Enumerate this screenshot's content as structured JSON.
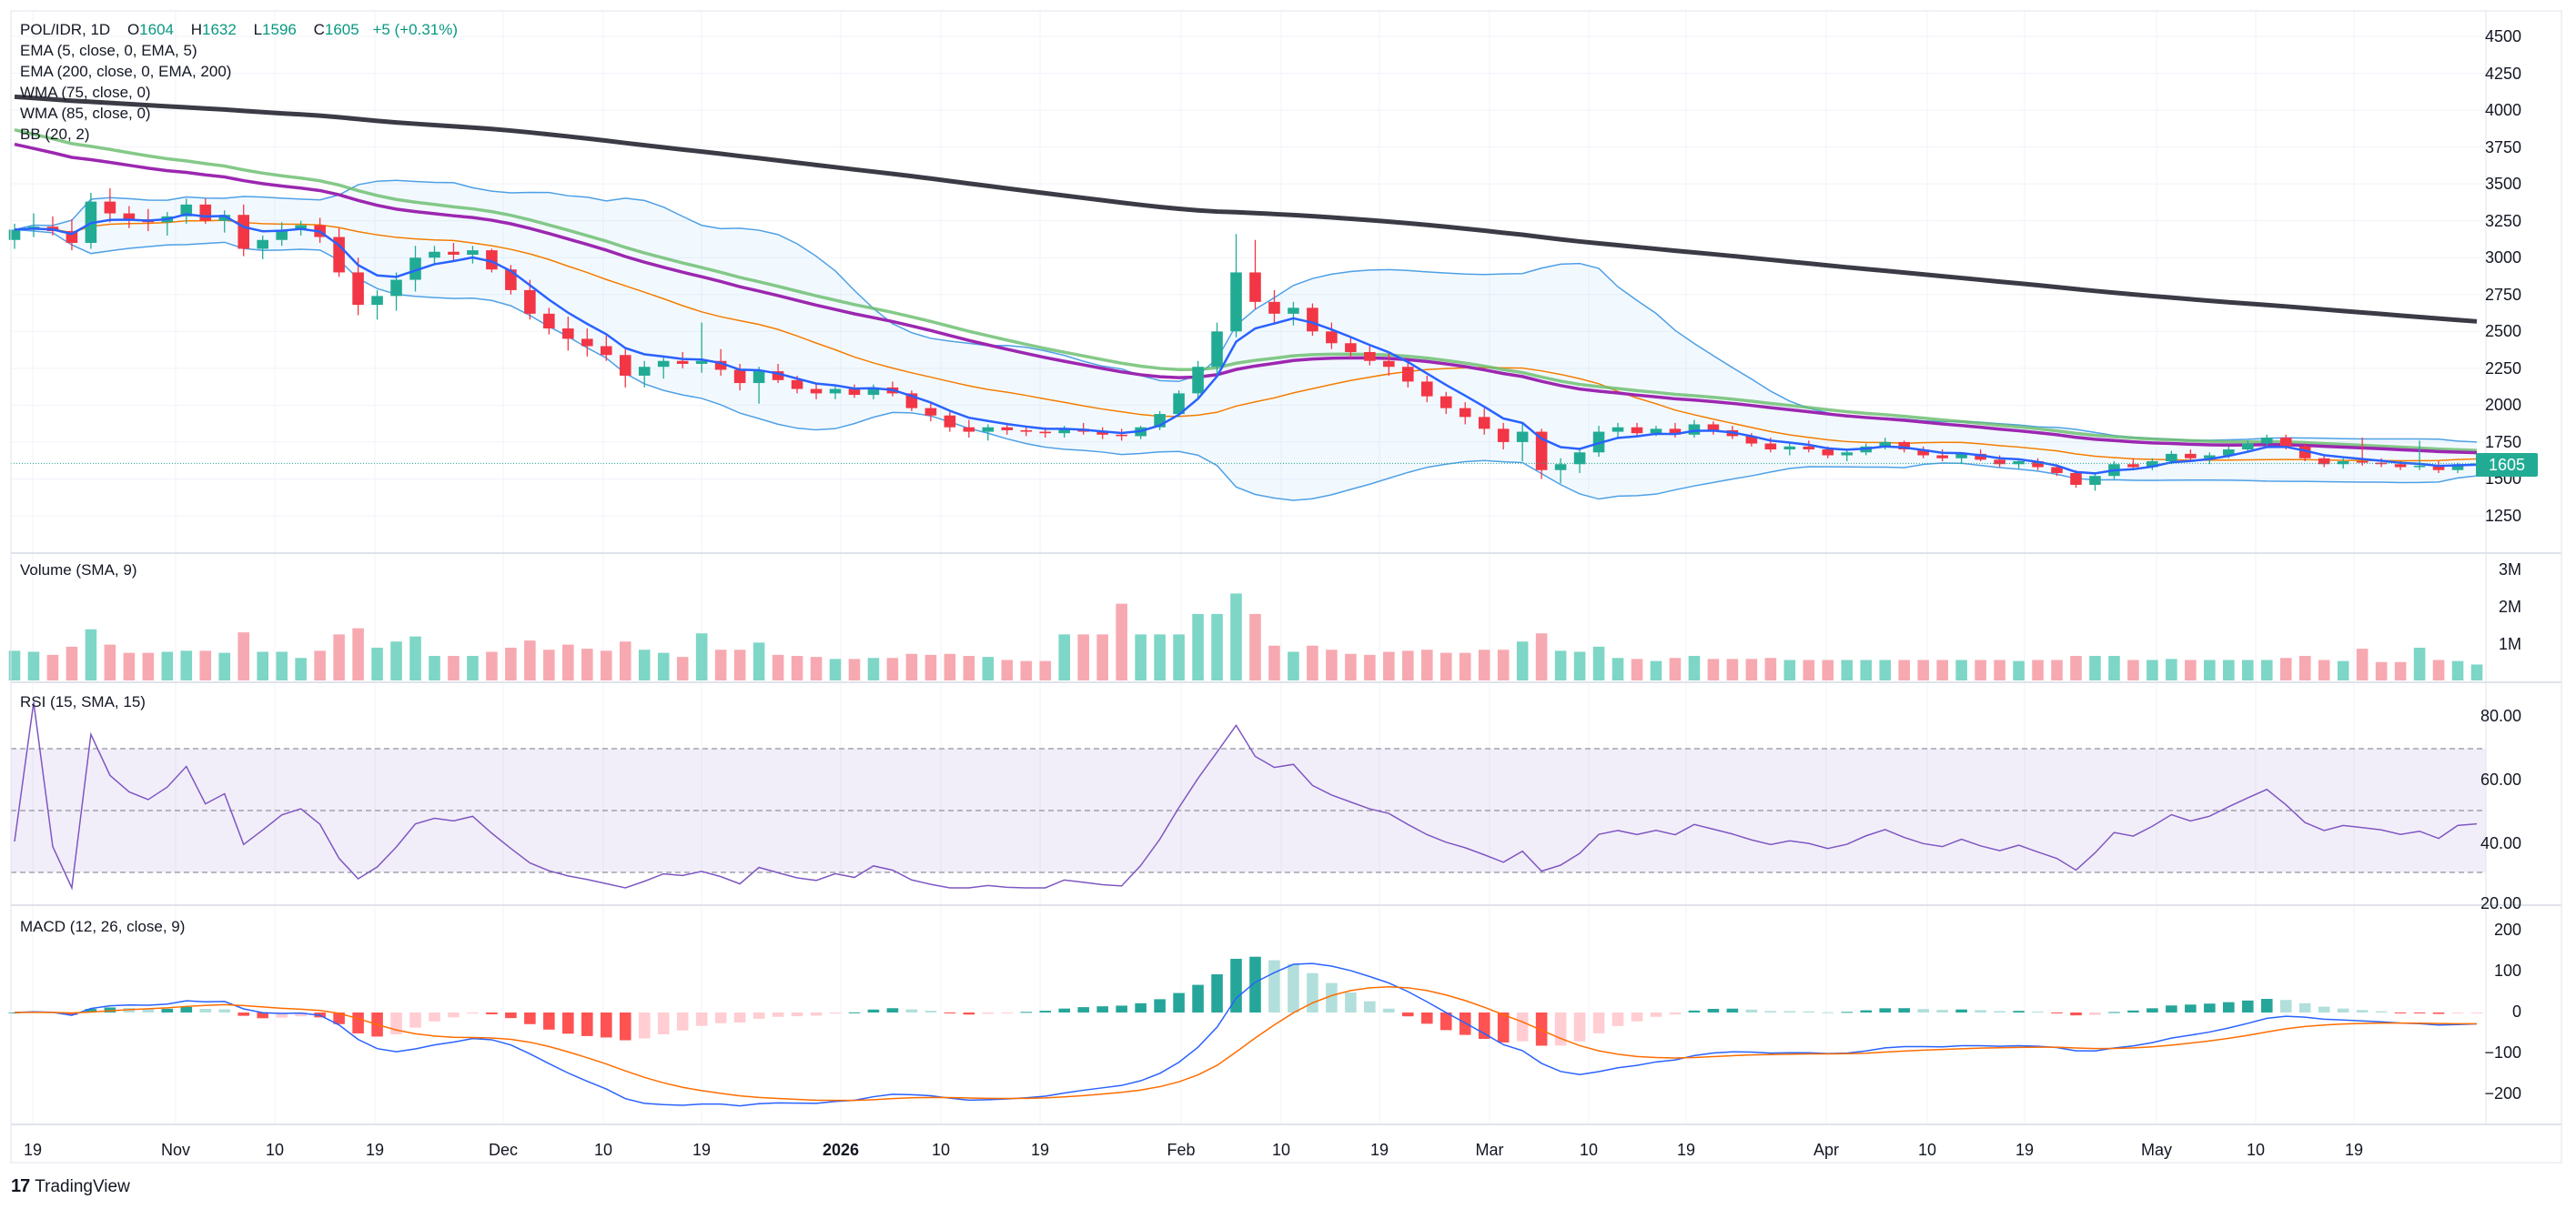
{
  "header": {
    "symbol": "POL/IDR, 1D",
    "open_label": "O",
    "open": "1604",
    "high_label": "H",
    "high": "1632",
    "low_label": "L",
    "low": "1596",
    "close_label": "C",
    "close": "1605",
    "change": "+5 (+0.31%)"
  },
  "indicators": [
    "EMA (5, close, 0, EMA, 5)",
    "EMA (200, close, 0, EMA, 200)",
    "WMA (75, close, 0)",
    "WMA (85, close, 0)",
    "BB (20, 2)"
  ],
  "panes": {
    "volume_title": "Volume (SMA, 9)",
    "rsi_title": "RSI (15, SMA, 15)",
    "macd_title": "MACD (12, 26, close, 9)"
  },
  "price_axis": [
    "4500",
    "4250",
    "4000",
    "3750",
    "3500",
    "3250",
    "3000",
    "2750",
    "2500",
    "2250",
    "2000",
    "1750",
    "1500",
    "1250"
  ],
  "volume_axis": [
    "3M",
    "2M",
    "1M"
  ],
  "rsi_axis": [
    "80.00",
    "60.00",
    "40.00",
    "20.00"
  ],
  "macd_axis": [
    "200",
    "100",
    "0",
    "−100",
    "−200"
  ],
  "time_axis": [
    {
      "label": "19",
      "bold": false
    },
    {
      "label": "Nov",
      "bold": false
    },
    {
      "label": "10",
      "bold": false
    },
    {
      "label": "19",
      "bold": false
    },
    {
      "label": "Dec",
      "bold": false
    },
    {
      "label": "10",
      "bold": false
    },
    {
      "label": "19",
      "bold": false
    },
    {
      "label": "2026",
      "bold": true
    },
    {
      "label": "10",
      "bold": false
    },
    {
      "label": "19",
      "bold": false
    },
    {
      "label": "Feb",
      "bold": false
    },
    {
      "label": "10",
      "bold": false
    },
    {
      "label": "19",
      "bold": false
    },
    {
      "label": "Mar",
      "bold": false
    },
    {
      "label": "10",
      "bold": false
    },
    {
      "label": "19",
      "bold": false
    },
    {
      "label": "Apr",
      "bold": false
    },
    {
      "label": "10",
      "bold": false
    },
    {
      "label": "19",
      "bold": false
    },
    {
      "label": "May",
      "bold": false
    },
    {
      "label": "10",
      "bold": false
    },
    {
      "label": "19",
      "bold": false
    }
  ],
  "last_price": "1605",
  "brand": "TradingView",
  "colors": {
    "up": "#22ab94",
    "down": "#f23645",
    "vol_up": "#7ed6c6",
    "vol_down": "#f7a9b1",
    "ema5": "#2962ff",
    "ema200": "#3b3b46",
    "wma75": "#9c27b0",
    "wma85": "#66bb6a",
    "bb": "#4ea0e6",
    "bb_basis": "#f57c00",
    "rsi": "#7e57c2",
    "macd": "#2962ff",
    "signal": "#ff6d00"
  },
  "chart_data": {
    "type": "candlestick",
    "timeframe": "1D",
    "ylim_price": [
      1250,
      4500
    ],
    "candles": [
      [
        3120,
        3230,
        3060,
        3190
      ],
      [
        3190,
        3300,
        3140,
        3210
      ],
      [
        3210,
        3280,
        3150,
        3180
      ],
      [
        3180,
        3260,
        3050,
        3100
      ],
      [
        3100,
        3440,
        3060,
        3380
      ],
      [
        3380,
        3470,
        3240,
        3300
      ],
      [
        3300,
        3350,
        3200,
        3260
      ],
      [
        3260,
        3330,
        3180,
        3240
      ],
      [
        3240,
        3310,
        3150,
        3280
      ],
      [
        3280,
        3400,
        3230,
        3360
      ],
      [
        3360,
        3400,
        3230,
        3250
      ],
      [
        3250,
        3320,
        3170,
        3290
      ],
      [
        3290,
        3360,
        3010,
        3060
      ],
      [
        3060,
        3150,
        2990,
        3120
      ],
      [
        3120,
        3240,
        3080,
        3190
      ],
      [
        3190,
        3250,
        3150,
        3220
      ],
      [
        3220,
        3270,
        3100,
        3140
      ],
      [
        3140,
        3200,
        2870,
        2900
      ],
      [
        2900,
        3000,
        2610,
        2680
      ],
      [
        2680,
        2780,
        2580,
        2740
      ],
      [
        2740,
        2900,
        2640,
        2850
      ],
      [
        2850,
        3080,
        2770,
        3000
      ],
      [
        3000,
        3080,
        2960,
        3040
      ],
      [
        3040,
        3100,
        2980,
        3020
      ],
      [
        3020,
        3080,
        2960,
        3050
      ],
      [
        3050,
        3060,
        2900,
        2920
      ],
      [
        2920,
        2950,
        2750,
        2780
      ],
      [
        2780,
        2850,
        2580,
        2620
      ],
      [
        2620,
        2660,
        2480,
        2520
      ],
      [
        2520,
        2600,
        2370,
        2450
      ],
      [
        2450,
        2520,
        2330,
        2400
      ],
      [
        2400,
        2470,
        2300,
        2340
      ],
      [
        2340,
        2380,
        2120,
        2200
      ],
      [
        2200,
        2300,
        2120,
        2260
      ],
      [
        2260,
        2330,
        2180,
        2300
      ],
      [
        2300,
        2360,
        2250,
        2280
      ],
      [
        2280,
        2560,
        2220,
        2300
      ],
      [
        2300,
        2380,
        2200,
        2240
      ],
      [
        2240,
        2280,
        2100,
        2150
      ],
      [
        2150,
        2260,
        2010,
        2230
      ],
      [
        2230,
        2280,
        2150,
        2170
      ],
      [
        2170,
        2200,
        2080,
        2110
      ],
      [
        2110,
        2150,
        2040,
        2080
      ],
      [
        2080,
        2130,
        2040,
        2110
      ],
      [
        2110,
        2140,
        2050,
        2070
      ],
      [
        2070,
        2140,
        2040,
        2120
      ],
      [
        2120,
        2160,
        2060,
        2080
      ],
      [
        2080,
        2100,
        1960,
        1980
      ],
      [
        1980,
        2020,
        1890,
        1930
      ],
      [
        1930,
        1960,
        1820,
        1850
      ],
      [
        1850,
        1900,
        1780,
        1820
      ],
      [
        1820,
        1870,
        1760,
        1850
      ],
      [
        1850,
        1880,
        1800,
        1830
      ],
      [
        1830,
        1860,
        1790,
        1820
      ],
      [
        1820,
        1850,
        1780,
        1810
      ],
      [
        1810,
        1860,
        1780,
        1840
      ],
      [
        1840,
        1880,
        1800,
        1820
      ],
      [
        1820,
        1850,
        1770,
        1800
      ],
      [
        1800,
        1840,
        1760,
        1790
      ],
      [
        1790,
        1860,
        1770,
        1850
      ],
      [
        1850,
        1960,
        1830,
        1940
      ],
      [
        1940,
        2100,
        1920,
        2080
      ],
      [
        2080,
        2300,
        2050,
        2260
      ],
      [
        2260,
        2560,
        2200,
        2500
      ],
      [
        2500,
        3160,
        2460,
        2900
      ],
      [
        2900,
        3120,
        2650,
        2700
      ],
      [
        2700,
        2780,
        2560,
        2620
      ],
      [
        2620,
        2700,
        2540,
        2660
      ],
      [
        2660,
        2690,
        2470,
        2500
      ],
      [
        2500,
        2560,
        2380,
        2420
      ],
      [
        2420,
        2460,
        2320,
        2360
      ],
      [
        2360,
        2400,
        2270,
        2300
      ],
      [
        2300,
        2360,
        2200,
        2260
      ],
      [
        2260,
        2290,
        2120,
        2160
      ],
      [
        2160,
        2200,
        2020,
        2060
      ],
      [
        2060,
        2090,
        1940,
        1980
      ],
      [
        1980,
        2020,
        1870,
        1920
      ],
      [
        1920,
        1980,
        1800,
        1840
      ],
      [
        1840,
        1880,
        1700,
        1750
      ],
      [
        1750,
        1880,
        1620,
        1820
      ],
      [
        1820,
        1840,
        1500,
        1560
      ],
      [
        1560,
        1640,
        1470,
        1600
      ],
      [
        1600,
        1700,
        1540,
        1680
      ],
      [
        1680,
        1860,
        1650,
        1820
      ],
      [
        1820,
        1880,
        1780,
        1850
      ],
      [
        1850,
        1880,
        1790,
        1810
      ],
      [
        1810,
        1860,
        1790,
        1840
      ],
      [
        1840,
        1880,
        1780,
        1800
      ],
      [
        1800,
        1900,
        1780,
        1870
      ],
      [
        1870,
        1890,
        1800,
        1830
      ],
      [
        1830,
        1860,
        1770,
        1790
      ],
      [
        1790,
        1810,
        1720,
        1740
      ],
      [
        1740,
        1780,
        1680,
        1700
      ],
      [
        1700,
        1740,
        1660,
        1720
      ],
      [
        1720,
        1760,
        1680,
        1700
      ],
      [
        1700,
        1720,
        1640,
        1660
      ],
      [
        1660,
        1700,
        1620,
        1680
      ],
      [
        1680,
        1740,
        1660,
        1720
      ],
      [
        1720,
        1780,
        1700,
        1750
      ],
      [
        1750,
        1760,
        1680,
        1700
      ],
      [
        1700,
        1720,
        1640,
        1660
      ],
      [
        1660,
        1700,
        1620,
        1640
      ],
      [
        1640,
        1680,
        1600,
        1670
      ],
      [
        1670,
        1700,
        1620,
        1630
      ],
      [
        1630,
        1660,
        1580,
        1600
      ],
      [
        1600,
        1640,
        1570,
        1620
      ],
      [
        1620,
        1640,
        1560,
        1580
      ],
      [
        1580,
        1600,
        1520,
        1540
      ],
      [
        1540,
        1560,
        1440,
        1460
      ],
      [
        1460,
        1540,
        1420,
        1520
      ],
      [
        1520,
        1620,
        1500,
        1600
      ],
      [
        1600,
        1640,
        1560,
        1580
      ],
      [
        1580,
        1640,
        1560,
        1620
      ],
      [
        1620,
        1690,
        1600,
        1670
      ],
      [
        1670,
        1700,
        1620,
        1640
      ],
      [
        1640,
        1680,
        1600,
        1660
      ],
      [
        1660,
        1720,
        1640,
        1700
      ],
      [
        1700,
        1760,
        1680,
        1740
      ],
      [
        1740,
        1800,
        1720,
        1780
      ],
      [
        1780,
        1800,
        1700,
        1720
      ],
      [
        1720,
        1740,
        1620,
        1640
      ],
      [
        1640,
        1660,
        1580,
        1600
      ],
      [
        1600,
        1640,
        1570,
        1620
      ],
      [
        1620,
        1780,
        1590,
        1610
      ],
      [
        1610,
        1640,
        1580,
        1600
      ],
      [
        1600,
        1620,
        1560,
        1580
      ],
      [
        1580,
        1760,
        1560,
        1590
      ],
      [
        1590,
        1620,
        1540,
        1560
      ],
      [
        1560,
        1610,
        1540,
        1600
      ],
      [
        1604,
        1632,
        1596,
        1605
      ]
    ]
  }
}
